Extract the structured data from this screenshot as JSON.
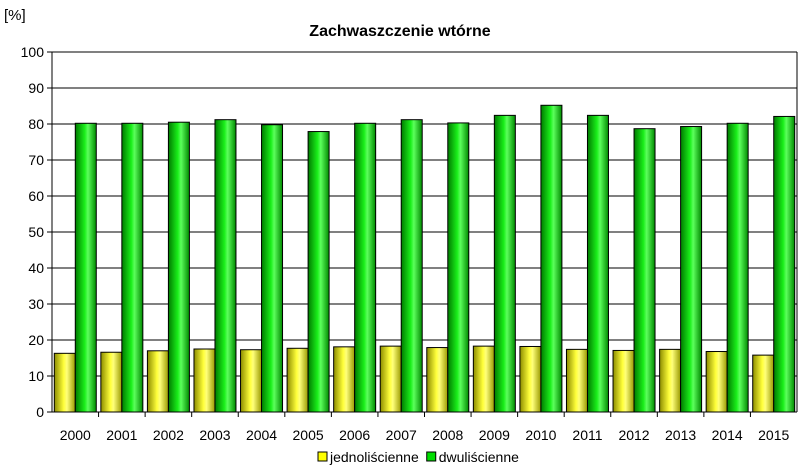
{
  "chart_data": {
    "type": "bar",
    "title": "Zachwaszczenie wtórne",
    "ylabel": "[%]",
    "xlabel": "",
    "ylim": [
      0,
      100
    ],
    "yticks": [
      0,
      10,
      20,
      30,
      40,
      50,
      60,
      70,
      80,
      90,
      100
    ],
    "grid": true,
    "legend_position": "bottom",
    "categories": [
      "2000",
      "2001",
      "2002",
      "2003",
      "2004",
      "2005",
      "2006",
      "2007",
      "2008",
      "2009",
      "2010",
      "2011",
      "2012",
      "2013",
      "2014",
      "2015"
    ],
    "series": [
      {
        "name": "jednoliścienne",
        "color": "#ffff00",
        "values": [
          16.3,
          16.6,
          17.0,
          17.5,
          17.3,
          17.7,
          18.1,
          18.3,
          17.9,
          18.3,
          18.2,
          17.4,
          17.1,
          17.4,
          16.8,
          15.8
        ]
      },
      {
        "name": "dwuliścienne",
        "color": "#00dd00",
        "values": [
          80.2,
          80.2,
          80.5,
          81.2,
          79.8,
          77.9,
          80.2,
          81.2,
          80.3,
          82.4,
          85.2,
          82.4,
          78.7,
          79.3,
          80.2,
          82.1
        ]
      }
    ]
  }
}
